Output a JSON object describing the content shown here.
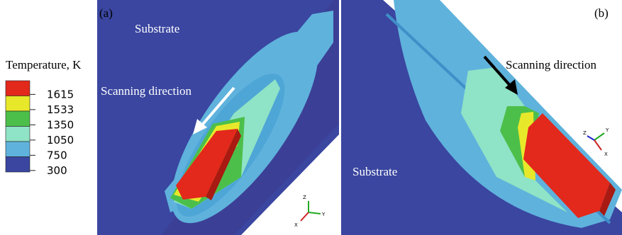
{
  "legend": {
    "title": "Temperature, K",
    "levels": [
      {
        "label": 1615,
        "color": "#e3281c"
      },
      {
        "label": 1533,
        "color": "#e8e82a"
      },
      {
        "label": 1350,
        "color": "#4cbf4a"
      },
      {
        "label": 1050,
        "color": "#8fe3c6"
      },
      {
        "label": 750,
        "color": "#5fb2dc"
      },
      {
        "label": 300,
        "color": "#3a46a0"
      }
    ]
  },
  "panels": [
    {
      "label": "(a)",
      "substrate": "Substrate",
      "direction": "Scanning direction",
      "axes": [
        "Z",
        "Y",
        "X"
      ]
    },
    {
      "label": "(b)",
      "substrate": "Substrate",
      "direction": "Scanning direction",
      "axes": [
        "Z",
        "Y",
        "X"
      ]
    }
  ]
}
